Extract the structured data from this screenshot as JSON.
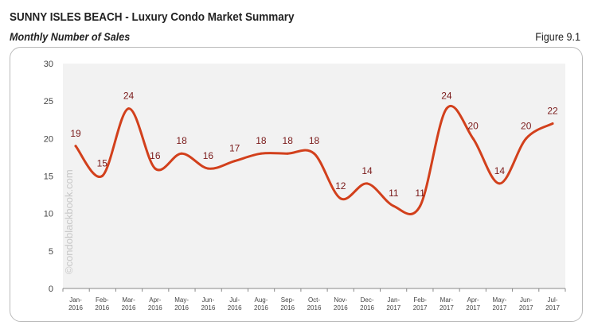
{
  "header": {
    "title": "SUNNY ISLES BEACH - Luxury Condo Market Summary",
    "subtitle": "Monthly Number of Sales",
    "figure": "Figure 9.1"
  },
  "watermark": "©condoblackbook.com",
  "colors": {
    "line": "#d2401c",
    "labels": "#7a1a1a",
    "plot_bg": "#f2f2f2"
  },
  "chart_data": {
    "type": "line",
    "smoothed": true,
    "title": "Monthly Number of Sales",
    "categories": [
      [
        "Jan-",
        "2016"
      ],
      [
        "Feb-",
        "2016"
      ],
      [
        "Mar-",
        "2016"
      ],
      [
        "Apr-",
        "2016"
      ],
      [
        "May-",
        "2016"
      ],
      [
        "Jun-",
        "2016"
      ],
      [
        "Jul-",
        "2016"
      ],
      [
        "Aug-",
        "2016"
      ],
      [
        "Sep-",
        "2016"
      ],
      [
        "Oct-",
        "2016"
      ],
      [
        "Nov-",
        "2016"
      ],
      [
        "Dec-",
        "2016"
      ],
      [
        "Jan-",
        "2017"
      ],
      [
        "Feb-",
        "2017"
      ],
      [
        "Mar-",
        "2017"
      ],
      [
        "Apr-",
        "2017"
      ],
      [
        "May-",
        "2017"
      ],
      [
        "Jun-",
        "2017"
      ],
      [
        "Jul-",
        "2017"
      ]
    ],
    "values": [
      19,
      15,
      24,
      16,
      18,
      16,
      17,
      18,
      18,
      18,
      12,
      14,
      11,
      11,
      24,
      20,
      14,
      20,
      22
    ],
    "ylim": [
      0,
      30
    ],
    "yticks": [
      0,
      5,
      10,
      15,
      20,
      25,
      30
    ],
    "grid": false,
    "data_labels": true
  }
}
